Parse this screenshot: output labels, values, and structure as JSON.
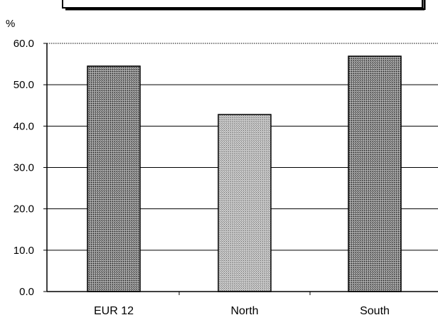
{
  "chart_data": {
    "type": "bar",
    "categories": [
      "EUR 12",
      "North",
      "South"
    ],
    "values": [
      54.5,
      42.8,
      56.9
    ],
    "title": "",
    "xlabel": "",
    "ylabel": "%",
    "ylim": [
      0,
      60
    ],
    "yticks": [
      "0.0",
      "10.0",
      "20.0",
      "30.0",
      "40.0",
      "50.0",
      "60.0"
    ],
    "grid": true,
    "bar_fills": [
      "#8c8c8c",
      "#b4b4b4",
      "#8c8c8c"
    ]
  }
}
